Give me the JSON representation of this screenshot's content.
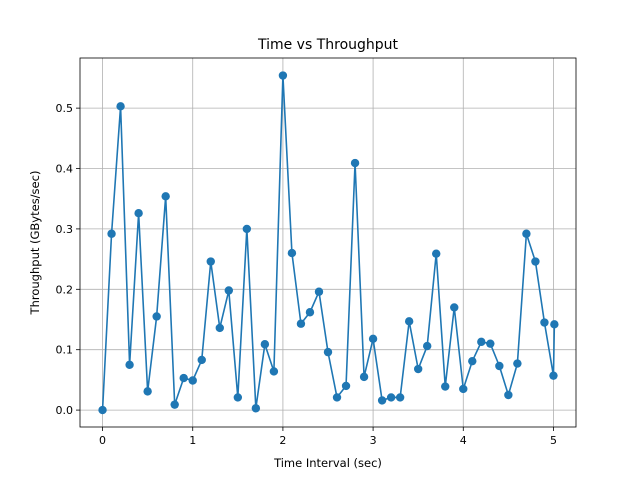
{
  "chart_data": {
    "type": "line",
    "title": "Time vs Throughput",
    "xlabel": "Time Interval (sec)",
    "ylabel": "Throughput (GBytes/sec)",
    "xlim": [
      -0.25,
      5.25
    ],
    "ylim": [
      -0.028,
      0.583
    ],
    "xticks": [
      0,
      1,
      2,
      3,
      4,
      5
    ],
    "yticks": [
      0.0,
      0.1,
      0.2,
      0.3,
      0.4,
      0.5
    ],
    "xtick_labels": [
      "0",
      "1",
      "2",
      "3",
      "4",
      "5"
    ],
    "ytick_labels": [
      "0.0",
      "0.1",
      "0.2",
      "0.3",
      "0.4",
      "0.5"
    ],
    "grid": true,
    "color": "#1f77b4",
    "marker": "circle",
    "x": [
      0.0,
      0.1,
      0.2,
      0.3,
      0.4,
      0.5,
      0.6,
      0.7,
      0.8,
      0.9,
      1.0,
      1.1,
      1.2,
      1.3,
      1.4,
      1.5,
      1.6,
      1.7,
      1.8,
      1.9,
      2.0,
      2.1,
      2.2,
      2.3,
      2.4,
      2.5,
      2.6,
      2.7,
      2.8,
      2.9,
      3.0,
      3.1,
      3.2,
      3.3,
      3.4,
      3.5,
      3.6,
      3.7,
      3.8,
      3.9,
      4.0,
      4.1,
      4.2,
      4.3,
      4.4,
      4.5,
      4.6,
      4.7,
      4.8,
      4.9,
      5.0,
      5.01
    ],
    "y": [
      0.0,
      0.292,
      0.503,
      0.075,
      0.326,
      0.031,
      0.155,
      0.354,
      0.009,
      0.053,
      0.049,
      0.083,
      0.246,
      0.136,
      0.198,
      0.021,
      0.3,
      0.003,
      0.109,
      0.064,
      0.554,
      0.26,
      0.143,
      0.162,
      0.196,
      0.096,
      0.021,
      0.04,
      0.409,
      0.055,
      0.118,
      0.016,
      0.021,
      0.021,
      0.147,
      0.068,
      0.106,
      0.259,
      0.039,
      0.17,
      0.035,
      0.081,
      0.113,
      0.11,
      0.073,
      0.025,
      0.077,
      0.292,
      0.246,
      0.145,
      0.057,
      0.142
    ]
  }
}
